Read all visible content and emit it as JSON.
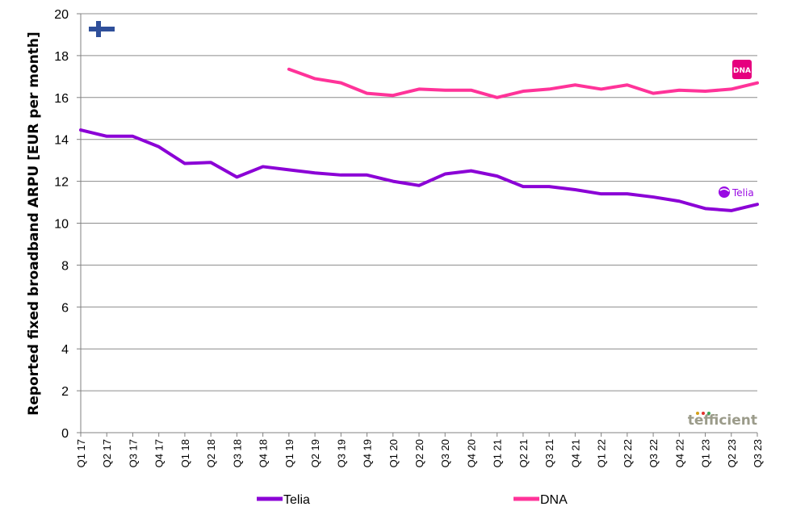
{
  "chart_data": {
    "type": "line",
    "ylabel": "Reported fixed broadband ARPU [EUR per month]",
    "xlabel": "",
    "ylim": [
      0,
      20
    ],
    "yticks": [
      "0",
      "2",
      "4",
      "6",
      "8",
      "10",
      "12",
      "14",
      "16",
      "18",
      "20"
    ],
    "grid": true,
    "legend_position": "bottom",
    "categories": [
      "Q1 17",
      "Q2 17",
      "Q3 17",
      "Q4 17",
      "Q1 18",
      "Q2 18",
      "Q3 18",
      "Q4 18",
      "Q1 19",
      "Q2 19",
      "Q3 19",
      "Q4 19",
      "Q1 20",
      "Q2 20",
      "Q3 20",
      "Q4 20",
      "Q1 21",
      "Q2 21",
      "Q3 21",
      "Q4 21",
      "Q1 22",
      "Q2 22",
      "Q3 22",
      "Q4 22",
      "Q1 23",
      "Q2 23",
      "Q3 23"
    ],
    "series": [
      {
        "name": "Telia",
        "color": "#8B00D6",
        "values": [
          14.45,
          14.15,
          14.15,
          13.65,
          12.85,
          12.9,
          12.2,
          12.7,
          12.55,
          12.4,
          12.3,
          12.3,
          12.0,
          11.8,
          12.35,
          12.5,
          12.25,
          11.75,
          11.75,
          11.6,
          11.4,
          11.4,
          11.25,
          11.05,
          10.7,
          10.6,
          10.9
        ]
      },
      {
        "name": "DNA",
        "color": "#FF3399",
        "values": [
          null,
          null,
          null,
          null,
          null,
          null,
          null,
          null,
          17.35,
          16.9,
          16.7,
          16.2,
          16.1,
          16.4,
          16.35,
          16.35,
          16.0,
          16.3,
          16.4,
          16.6,
          16.4,
          16.6,
          16.2,
          16.35,
          16.3,
          16.4,
          16.7
        ]
      }
    ]
  },
  "logos": {
    "dna_text": "DNA",
    "telia_text": "Telia",
    "watermark_text": "tefficient",
    "flag_icon": "finland-flag-icon"
  }
}
